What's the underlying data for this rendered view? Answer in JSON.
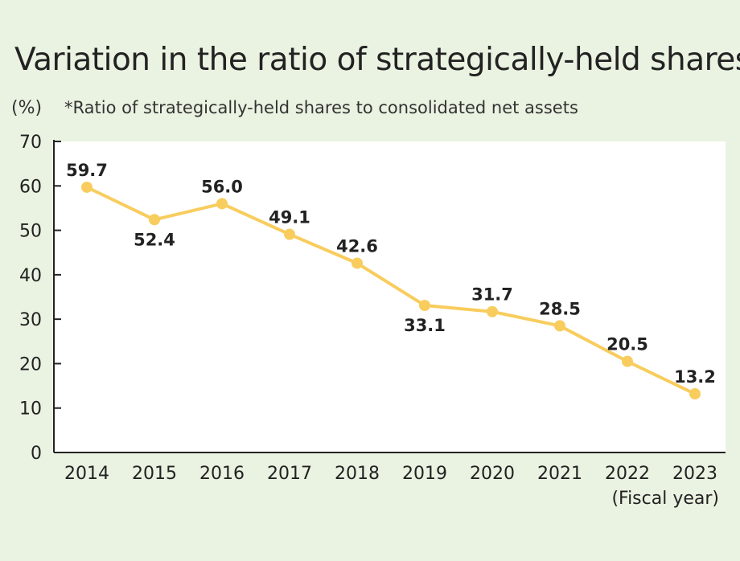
{
  "title": "Variation in the ratio of strategically-held shares",
  "unit_label": "(%)",
  "note": "*Ratio of strategically-held shares to consolidated net assets",
  "chart_data": {
    "type": "line",
    "title": "Variation in the ratio of strategically-held shares",
    "xlabel": "(Fiscal year)",
    "ylabel": "(%)",
    "categories": [
      "2014",
      "2015",
      "2016",
      "2017",
      "2018",
      "2019",
      "2020",
      "2021",
      "2022",
      "2023"
    ],
    "series": [
      {
        "name": "Ratio of strategically-held shares to consolidated net assets",
        "values": [
          59.7,
          52.4,
          56.0,
          49.1,
          42.6,
          33.1,
          31.7,
          28.5,
          20.5,
          13.2
        ],
        "labels": [
          "59.7",
          "52.4",
          "56.0",
          "49.1",
          "42.6",
          "33.1",
          "31.7",
          "28.5",
          "20.5",
          "13.2"
        ],
        "label_positions": [
          "above",
          "below",
          "above",
          "above",
          "above",
          "below",
          "above",
          "above",
          "above",
          "above"
        ]
      }
    ],
    "ylim": [
      0,
      70
    ],
    "yticks": [
      0,
      10,
      20,
      30,
      40,
      50,
      60,
      70
    ],
    "grid": false,
    "line_color": "#f8cd5e",
    "marker_color": "#f8cd5e",
    "plot_background": "#ffffff"
  }
}
